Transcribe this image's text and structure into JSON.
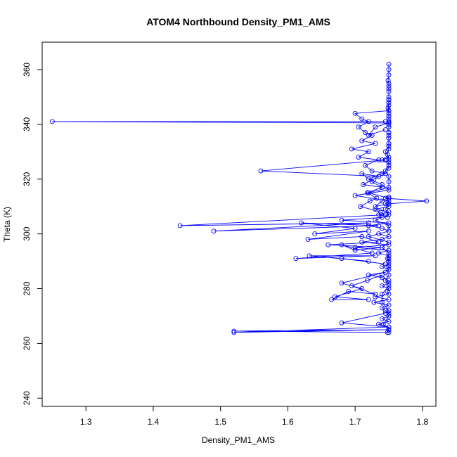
{
  "chart_data": {
    "type": "scatter",
    "title": "ATOM4 Northbound Density_PM1_AMS",
    "xlabel": "Density_PM1_AMS",
    "ylabel": "Theta (K)",
    "xlim": [
      1.235,
      1.82
    ],
    "ylim": [
      237,
      370
    ],
    "xticks": [
      1.3,
      1.4,
      1.5,
      1.6,
      1.7,
      1.8
    ],
    "yticks": [
      240,
      260,
      280,
      300,
      320,
      340,
      360
    ],
    "series_color": "#0000ff",
    "grid": false,
    "markers": "open-circles-connected-by-lines",
    "series": [
      {
        "x": [
          1.75,
          1.75,
          1.75,
          1.749,
          1.75,
          1.75,
          1.75,
          1.75,
          1.75,
          1.75,
          1.75,
          1.749,
          1.75,
          1.75,
          1.75,
          1.75,
          1.75,
          1.75,
          1.75,
          1.75,
          1.75,
          1.75,
          1.75,
          1.745,
          1.75,
          1.74,
          1.75,
          1.75,
          1.74,
          1.72,
          1.74,
          1.75,
          1.7,
          1.75,
          1.745,
          1.75,
          1.73,
          1.75,
          1.735,
          1.74,
          1.68,
          1.75,
          1.72,
          1.74,
          1.75,
          1.735,
          1.75,
          1.74,
          1.71,
          1.75,
          1.7,
          1.75,
          1.735,
          1.75,
          1.748,
          1.75,
          1.75,
          1.74,
          1.75,
          1.745,
          1.72,
          1.74,
          1.75,
          1.75,
          1.74,
          1.75,
          1.748,
          1.75,
          1.73,
          1.75,
          1.728,
          1.75,
          1.74,
          1.745,
          1.75,
          1.75,
          1.74,
          1.75,
          1.735,
          1.75,
          1.75,
          1.748,
          1.75,
          1.742,
          1.75,
          1.75,
          1.74,
          1.74,
          1.75,
          1.745,
          1.75,
          1.75,
          1.75,
          1.75,
          1.74,
          1.75,
          1.72,
          1.75,
          1.75,
          1.73,
          1.75,
          1.745,
          1.75,
          1.75,
          1.72,
          1.75,
          1.75,
          1.75,
          1.745,
          1.75,
          1.75,
          1.748,
          1.75,
          1.75,
          1.75,
          1.75,
          1.75,
          1.75,
          1.75,
          1.75,
          1.75,
          1.75
        ],
        "y": [
          362.0,
          360.0,
          358.0,
          356.0,
          355.0,
          354.0,
          353.0,
          352.0,
          350.0,
          349.0,
          348.0,
          346.0,
          344.0,
          343.0,
          342.0,
          341.0,
          340.0,
          339.0,
          337.0,
          336.0,
          335.0,
          333.0,
          332.0,
          330.0,
          328.0,
          327.0,
          326.0,
          324.0,
          322.0,
          320.0,
          318.0,
          316.0,
          314.0,
          312.0,
          311.0,
          310.0,
          309.0,
          308.0,
          307.0,
          306.0,
          305.0,
          304.0,
          303.0,
          302.0,
          301.0,
          300.0,
          299.0,
          298.0,
          297.0,
          296.0,
          295.0,
          294.0,
          293.0,
          292.0,
          291.0,
          290.0,
          289.0,
          288.0,
          287.0,
          286.0,
          285.0,
          284.0,
          283.0,
          282.0,
          281.0,
          280.0,
          279.0,
          278.0,
          277.0,
          276.0,
          275.0,
          274.0,
          273.0,
          272.0,
          271.0,
          270.0,
          269.0,
          268.0,
          267.0,
          266.0,
          265.0,
          264.0,
          265.0,
          267.0,
          270.0,
          272.0,
          275.0,
          278.0,
          281.0,
          283.0,
          285.0,
          288.0,
          291.0,
          293.0,
          295.0,
          297.0,
          299.0,
          301.0,
          303.0,
          305.0,
          307.0,
          309.0,
          311.0,
          313.0,
          315.0,
          317.0,
          319.0,
          321.0,
          323.0,
          325.0,
          327.0,
          329.0,
          331.0,
          333.0,
          335.0,
          337.0,
          339.0,
          341.0,
          343.0,
          345.0,
          347.0,
          349.0
        ]
      },
      {
        "x": [
          1.75,
          1.7,
          1.71,
          1.72,
          1.705,
          1.715,
          1.725,
          1.71,
          1.73,
          1.695,
          1.72,
          1.705,
          1.735,
          1.715,
          1.725,
          1.745,
          1.728,
          1.712,
          1.74,
          1.718,
          1.732,
          1.722,
          1.708,
          1.738,
          1.748
        ],
        "y": [
          345.0,
          344.0,
          342.0,
          341.0,
          339.0,
          337.0,
          336.0,
          334.0,
          333.0,
          331.0,
          330.0,
          328.0,
          327.0,
          325.0,
          323.0,
          322.0,
          320.0,
          318.0,
          317.0,
          315.0,
          313.0,
          312.0,
          310.0,
          308.0,
          306.0
        ]
      },
      {
        "x": [
          1.745,
          1.25,
          1.75,
          1.73,
          1.72,
          1.745
        ],
        "y": [
          341.0,
          341.0,
          340.5,
          339.0,
          336.0,
          338.0
        ]
      },
      {
        "x": [
          1.745,
          1.56,
          1.735,
          1.71,
          1.725,
          1.74
        ],
        "y": [
          327.0,
          323.0,
          321.0,
          322.0,
          319.0,
          317.0
        ]
      },
      {
        "x": [
          1.745,
          1.806,
          1.75,
          1.73,
          1.74,
          1.75
        ],
        "y": [
          313.0,
          312.0,
          311.0,
          310.0,
          312.0,
          313.5
        ]
      },
      {
        "x": [
          1.745,
          1.44,
          1.72,
          1.49,
          1.735,
          1.62,
          1.7,
          1.64,
          1.72,
          1.63,
          1.71,
          1.735,
          1.66,
          1.74,
          1.7,
          1.68,
          1.725,
          1.612,
          1.73,
          1.632,
          1.72,
          1.68,
          1.745
        ],
        "y": [
          307.0,
          303.0,
          304.0,
          301.0,
          303.0,
          304.0,
          302.0,
          300.0,
          301.0,
          298.0,
          299.0,
          297.0,
          296.0,
          295.0,
          294.0,
          296.0,
          293.0,
          291.0,
          292.0,
          292.0,
          290.0,
          291.0,
          289.0
        ]
      },
      {
        "x": [
          1.745,
          1.68,
          1.71,
          1.67,
          1.72,
          1.665,
          1.69,
          1.73,
          1.695,
          1.718,
          1.74
        ],
        "y": [
          286.0,
          282.0,
          280.0,
          277.0,
          276.0,
          276.0,
          279.0,
          278.0,
          281.0,
          283.0,
          285.0
        ]
      },
      {
        "x": [
          1.745,
          1.68,
          1.75,
          1.52,
          1.75,
          1.52,
          1.75
        ],
        "y": [
          271.0,
          267.5,
          266.0,
          264.0,
          265.0,
          264.5,
          264.0
        ]
      }
    ]
  }
}
